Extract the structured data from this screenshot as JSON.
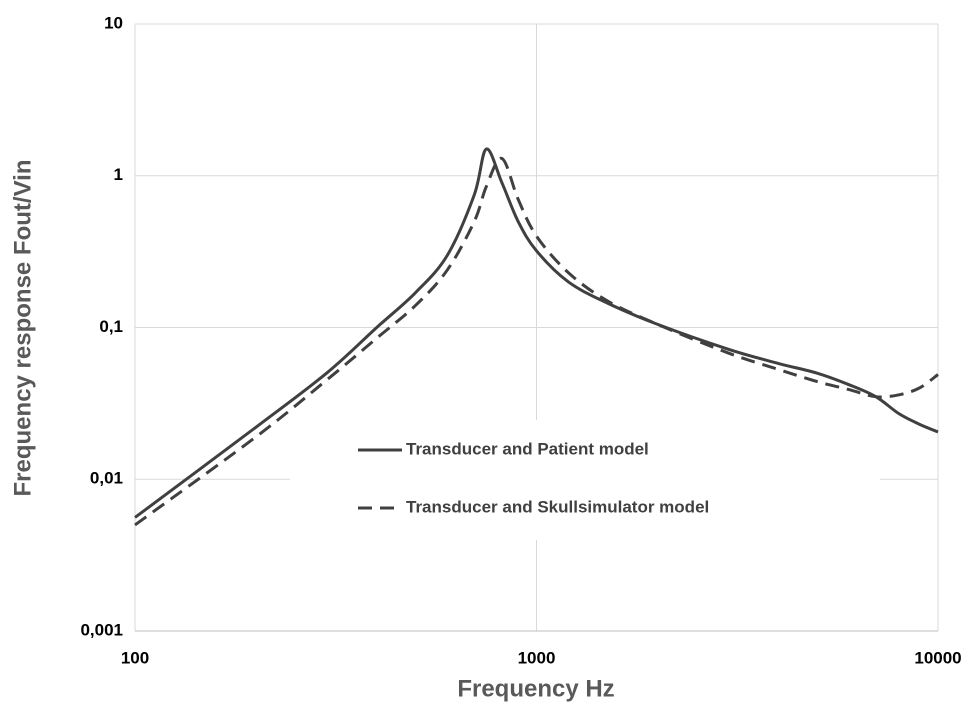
{
  "chart_data": {
    "type": "line",
    "x_label": "Frequency Hz",
    "y_label": "Frequency response Fout/Vin",
    "x": [
      100,
      200,
      300,
      400,
      500,
      600,
      700,
      750,
      820,
      900,
      1000,
      1200,
      1500,
      2000,
      3000,
      4000,
      5000,
      6000,
      7000,
      8000,
      9000,
      10000
    ],
    "series": [
      {
        "name": "Transducer and Patient model",
        "color": "#404040",
        "dash": "solid",
        "values": [
          0.0056,
          0.022,
          0.05,
          0.1,
          0.17,
          0.3,
          0.75,
          1.5,
          0.9,
          0.5,
          0.32,
          0.2,
          0.145,
          0.105,
          0.072,
          0.058,
          0.05,
          0.042,
          0.035,
          0.027,
          0.023,
          0.0205
        ]
      },
      {
        "name": "Transducer and Skullsimulator model",
        "color": "#404040",
        "dash": "dashed",
        "values": [
          0.005,
          0.019,
          0.045,
          0.085,
          0.14,
          0.24,
          0.5,
          0.85,
          1.3,
          0.7,
          0.4,
          0.23,
          0.15,
          0.105,
          0.068,
          0.053,
          0.044,
          0.039,
          0.035,
          0.036,
          0.04,
          0.049
        ]
      }
    ],
    "xlim": [
      100,
      10000
    ],
    "ylim": [
      0.001,
      10
    ],
    "xticks": [
      100,
      1000,
      10000
    ],
    "yticks": [
      {
        "value": 0.001,
        "label": "0,001"
      },
      {
        "value": 0.01,
        "label": "0,01"
      },
      {
        "value": 0.1,
        "label": "0,1"
      },
      1,
      10
    ],
    "xscale": "log",
    "yscale": "log",
    "grid": true,
    "legend": "center"
  }
}
